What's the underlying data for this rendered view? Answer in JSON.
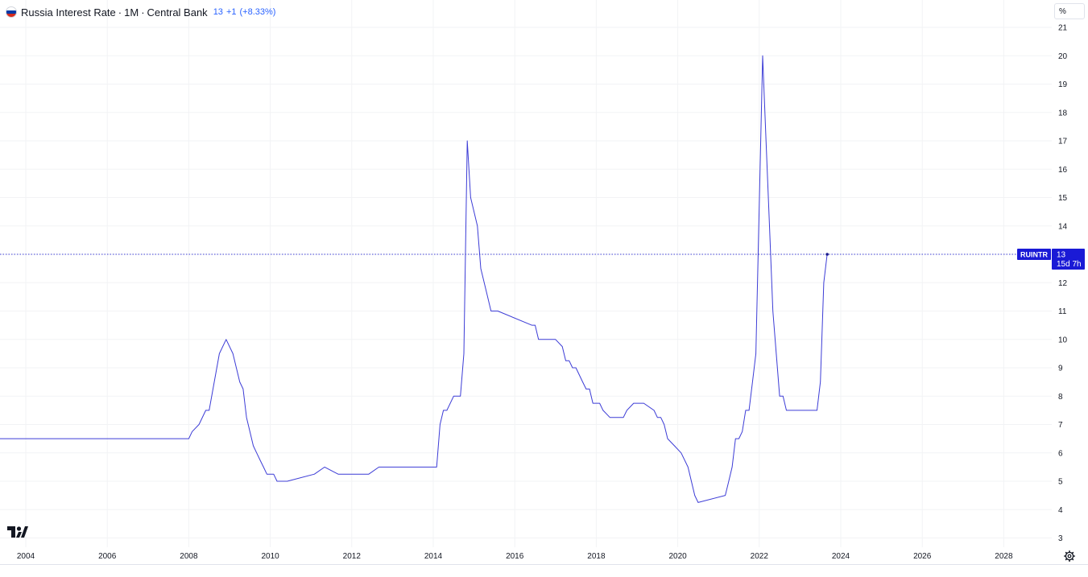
{
  "legend": {
    "title": "Russia Interest Rate",
    "interval": "1M",
    "source": "Central Bank",
    "last_value": "13",
    "change": "+1",
    "change_pct": "(+8.33%)"
  },
  "price_scale": {
    "unit_label": "%"
  },
  "price_tag": {
    "symbol": "RUINTR",
    "value": "13",
    "countdown": "15d 7h"
  },
  "colors": {
    "line": "#3c3cd6",
    "tag_bg": "#1a1ad6",
    "grid": "#f2f3f5",
    "text": "#131722",
    "legend_accent": "#2962ff"
  },
  "icons": {
    "flag": "russia-flag-icon",
    "logo": "tradingview-logo-icon",
    "settings": "gear-icon"
  },
  "chart_data": {
    "type": "line",
    "title": "Russia Interest Rate · 1M · Central Bank",
    "xlabel": "",
    "ylabel": "%",
    "x_ticks": [
      "2004",
      "2006",
      "2008",
      "2010",
      "2012",
      "2014",
      "2016",
      "2018",
      "2020",
      "2022",
      "2024",
      "2026",
      "2028"
    ],
    "y_ticks": [
      3,
      4,
      5,
      6,
      7,
      8,
      9,
      10,
      11,
      12,
      13,
      14,
      15,
      16,
      17,
      18,
      19,
      20,
      21
    ],
    "xlim": [
      "2003-06",
      "2029-06"
    ],
    "ylim": [
      3,
      21
    ],
    "grid": true,
    "legend": "top-left",
    "last_value_line": 13,
    "series": [
      {
        "x": [
          "2003-05",
          "2008-01",
          "2008-02",
          "2008-04",
          "2008-06",
          "2008-07",
          "2008-10",
          "2008-12",
          "2009-02",
          "2009-04",
          "2009-05",
          "2009-06",
          "2009-07",
          "2009-08",
          "2009-09",
          "2009-10",
          "2009-11",
          "2009-12",
          "2010-02",
          "2010-03",
          "2010-04",
          "2010-05",
          "2010-06",
          "2011-02",
          "2011-05",
          "2011-09",
          "2012-01",
          "2012-06",
          "2012-09",
          "2013-06",
          "2014-02",
          "2014-03",
          "2014-04",
          "2014-05",
          "2014-07",
          "2014-09",
          "2014-10",
          "2014-11",
          "2014-12",
          "2015-02",
          "2015-03",
          "2015-05",
          "2015-06",
          "2015-07",
          "2015-08",
          "2016-06",
          "2016-07",
          "2016-08",
          "2016-09",
          "2017-01",
          "2017-03",
          "2017-04",
          "2017-05",
          "2017-06",
          "2017-07",
          "2017-09",
          "2017-10",
          "2017-11",
          "2017-12",
          "2018-02",
          "2018-03",
          "2018-05",
          "2018-09",
          "2018-10",
          "2018-12",
          "2019-03",
          "2019-06",
          "2019-07",
          "2019-08",
          "2019-09",
          "2019-10",
          "2019-12",
          "2020-02",
          "2020-04",
          "2020-06",
          "2020-07",
          "2021-03",
          "2021-04",
          "2021-05",
          "2021-06",
          "2021-07",
          "2021-08",
          "2021-09",
          "2021-10",
          "2021-11",
          "2021-12",
          "2022-02",
          "2022-03",
          "2022-04",
          "2022-05",
          "2022-06",
          "2022-07",
          "2022-08",
          "2022-09",
          "2023-06",
          "2023-07",
          "2023-08",
          "2023-09"
        ],
        "y": [
          6.5,
          6.5,
          6.75,
          7,
          7.5,
          7.5,
          9.5,
          10,
          9.5,
          8.5,
          8.25,
          7.25,
          6.75,
          6.25,
          6,
          5.75,
          5.5,
          5.25,
          5.25,
          5,
          5,
          5,
          5,
          5.25,
          5.5,
          5.25,
          5.25,
          5.25,
          5.5,
          5.5,
          5.5,
          7,
          7.5,
          7.5,
          8,
          8,
          9.5,
          17,
          15,
          14,
          12.5,
          11.5,
          11,
          11,
          11,
          10.5,
          10.5,
          10,
          10,
          10,
          9.75,
          9.25,
          9.25,
          9,
          9,
          8.5,
          8.25,
          8.25,
          7.75,
          7.75,
          7.5,
          7.25,
          7.25,
          7.5,
          7.75,
          7.75,
          7.5,
          7.25,
          7.25,
          7,
          6.5,
          6.25,
          6,
          5.5,
          4.5,
          4.25,
          4.5,
          5,
          5.5,
          6.5,
          6.5,
          6.75,
          7.5,
          7.5,
          8.5,
          9.5,
          20,
          17,
          14,
          11,
          9.5,
          8,
          8,
          7.5,
          7.5,
          8.5,
          12,
          13
        ]
      }
    ]
  }
}
